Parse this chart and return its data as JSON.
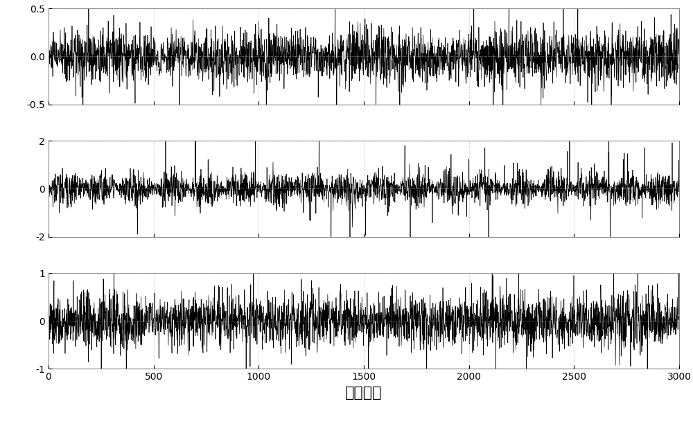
{
  "title": "",
  "xlabel": "采样点数",
  "n_points": 3000,
  "subplot1": {
    "ylim": [
      -0.5,
      0.5
    ],
    "yticks": [
      -0.5,
      0,
      0.5
    ],
    "noise_scale": 0.1,
    "mod_amp": 0.6,
    "mod_freq": 0.0008,
    "spike_prob": 0.015,
    "spike_amp": 0.35
  },
  "subplot2": {
    "ylim": [
      -2,
      2
    ],
    "yticks": [
      -2,
      0,
      2
    ],
    "noise_scale": 0.25,
    "mod_freq": 0.003,
    "mod_amp": 1.2,
    "spike_prob": 0.025,
    "spike_amp": 1.5
  },
  "subplot3": {
    "ylim": [
      -1,
      1
    ],
    "yticks": [
      -1,
      0,
      1
    ],
    "noise_scale": 0.22,
    "mod_amp": 0.4,
    "mod_freq": 0.001,
    "spike_prob": 0.018,
    "spike_amp": 0.7
  },
  "xlim": [
    0,
    3000
  ],
  "xticks": [
    0,
    500,
    1000,
    1500,
    2000,
    2500,
    3000
  ],
  "linewidth": 0.5,
  "line_color": "#000000",
  "background_color": "#ffffff",
  "xlabel_fontsize": 16,
  "tick_fontsize": 10,
  "grid_color": "#b0b0b0",
  "grid_style": "dotted"
}
